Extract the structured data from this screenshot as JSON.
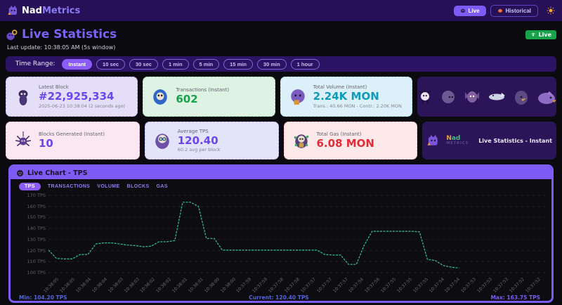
{
  "header": {
    "brand": {
      "primary": "Nad",
      "secondary": "Metrics"
    },
    "live_button": "Live",
    "historical_button": "Historical"
  },
  "page": {
    "title": "Live Statistics",
    "live_badge": "Live",
    "last_update": "Last update: 10:38:05 AM  (5s window)"
  },
  "time_range": {
    "label": "Time Range:",
    "selected": "Instant",
    "options": [
      "Instant",
      "10 sec",
      "30 sec",
      "1 min",
      "5 min",
      "15 min",
      "30 min",
      "1 hour"
    ]
  },
  "stats": {
    "latest_block": {
      "label": "Latest Block",
      "value": "#22,925,334",
      "sub": "2025-06-23 10:38:04 (2 seconds ago)"
    },
    "transactions": {
      "label": "Transactions (Instant)",
      "value": "602"
    },
    "total_volume": {
      "label": "Total Volume (Instant)",
      "value": "2.24K MON",
      "sub": "Trans.: 40.66 MON - Contr.: 2.20K MON"
    },
    "blocks_generated": {
      "label": "Blocks Generated (Instant)",
      "value": "10"
    },
    "average_tps": {
      "label": "Average TPS",
      "value": "120.40",
      "sub": "60.2 avg per block"
    },
    "total_gas": {
      "label": "Total Gas (Instant)",
      "value": "6.08 MON"
    },
    "watermark": {
      "brand_primary": "Nad",
      "brand_secondary": "METRICS",
      "caption": "Live Statistics - Instant"
    }
  },
  "chart": {
    "title": "Live Chart - TPS",
    "tabs": [
      "TPS",
      "TRANSACTIONS",
      "VOLUME",
      "BLOCKS",
      "GAS"
    ],
    "selected_tab": "TPS",
    "footer": {
      "min": "Min: 104.20 TPS",
      "current": "Current: 120.40 TPS",
      "max": "Max: 163.75 TPS"
    }
  },
  "chart_data": {
    "type": "line",
    "title": "Live Chart - TPS",
    "ylabel": "TPS",
    "ylim": [
      100,
      170
    ],
    "yticks": [
      170,
      160,
      150,
      140,
      130,
      120,
      110,
      100
    ],
    "ytick_suffix": " TPS",
    "grid": "dashed horizontal",
    "line_color": "#35c28f",
    "x_labels": [
      "10:38:05",
      "10:38:05",
      "10:38:04",
      "10:38:04",
      "10:38:03",
      "10:38:03",
      "10:38:02",
      "10:38:02",
      "10:38:01",
      "10:38:01",
      "10:38:00",
      "10:38:00",
      "10:37:59",
      "10:37:59",
      "10:37:58",
      "10:37:58",
      "10:37:57",
      "10:37:57",
      "10:37:57",
      "10:37:56",
      "10:37:56",
      "10:37:55",
      "10:37:55",
      "10:37:55",
      "10:37:54",
      "10:37:54",
      "10:37:53",
      "10:37:53",
      "10:37:53",
      "10:37:52",
      "10:37:52"
    ],
    "values": [
      120.4,
      113,
      112.5,
      112.5,
      116.5,
      116.5,
      126,
      127,
      127,
      126,
      125,
      124.5,
      123.5,
      124,
      128,
      128,
      129,
      163.75,
      163.75,
      160,
      131,
      131,
      120.5,
      120.4,
      120.4,
      120.4,
      120.4,
      120.4,
      120.4,
      120.4,
      120.4,
      120.4,
      120.4,
      120.4,
      120.4,
      116.5,
      116,
      116,
      107.5,
      107.5,
      125,
      137.5,
      137.5,
      137.5,
      137.5,
      137.5,
      137.5,
      137,
      112,
      111,
      106.5,
      105,
      104.2,
      null,
      null,
      null,
      null,
      null,
      null,
      null,
      null,
      null,
      null,
      null
    ],
    "min": 104.2,
    "current": 120.4,
    "max": 163.75
  }
}
